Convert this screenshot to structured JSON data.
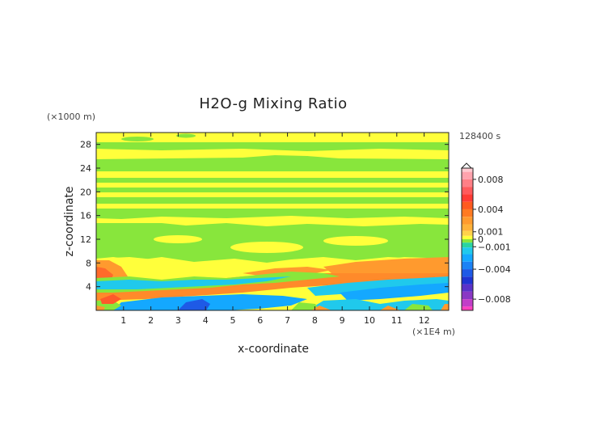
{
  "chart_data": {
    "type": "heatmap",
    "title": "H2O-g Mixing Ratio",
    "xlabel": "x-coordinate",
    "ylabel": "z-coordinate",
    "x_unit": "(×1E4 m)",
    "y_unit": "(×1000 m)",
    "time_label": "128400 s",
    "xlim": [
      0,
      12.9
    ],
    "ylim": [
      0,
      30
    ],
    "x_ticks": [
      "1",
      "2",
      "3",
      "4",
      "5",
      "6",
      "7",
      "8",
      "9",
      "10",
      "11",
      "12"
    ],
    "y_ticks": [
      "4",
      "8",
      "12",
      "16",
      "20",
      "24",
      "28"
    ],
    "colorbar": {
      "range": [
        -0.0095,
        0.0095
      ],
      "labels": [
        "0.008",
        "0.004",
        "0.001",
        "0",
        "−0.001",
        "−0.004",
        "−0.008"
      ],
      "label_values": [
        0.008,
        0.004,
        0.001,
        0,
        -0.001,
        -0.004,
        -0.008
      ],
      "levels": [
        {
          "v": 0.0095,
          "color": "#ffc9d0"
        },
        {
          "v": 0.0085,
          "color": "#ffa3ad"
        },
        {
          "v": 0.0075,
          "color": "#ff7f86"
        },
        {
          "v": 0.0065,
          "color": "#ff5a5c"
        },
        {
          "v": 0.0055,
          "color": "#ff3b34"
        },
        {
          "v": 0.0045,
          "color": "#ff5a1f"
        },
        {
          "v": 0.0035,
          "color": "#ff7a22"
        },
        {
          "v": 0.0025,
          "color": "#ff9a2e"
        },
        {
          "v": 0.0015,
          "color": "#ffb23a"
        },
        {
          "v": 0.0007,
          "color": "#ffd24a"
        },
        {
          "v": 0.0002,
          "color": "#ffff3b"
        },
        {
          "v": -0.0002,
          "color": "#88e63c"
        },
        {
          "v": -0.0007,
          "color": "#2ad4a0"
        },
        {
          "v": -0.0015,
          "color": "#20c9ec"
        },
        {
          "v": -0.0025,
          "color": "#14a8ff"
        },
        {
          "v": -0.0035,
          "color": "#1c82f5"
        },
        {
          "v": -0.0045,
          "color": "#1e5ae6"
        },
        {
          "v": -0.0055,
          "color": "#1f34d2"
        },
        {
          "v": -0.0065,
          "color": "#5a32c8"
        },
        {
          "v": -0.0075,
          "color": "#8a38c4"
        },
        {
          "v": -0.0085,
          "color": "#c23ec8"
        },
        {
          "v": -0.0095,
          "color": "#ff3fbe"
        }
      ]
    },
    "fields": {
      "background": "#ffff3b",
      "green": "#88e63c",
      "orange": "#ff9a2e",
      "red": "#ff4a2a",
      "cyan": "#20c9ec",
      "blue": "#14a8ff",
      "deep_blue": "#1e5ae6"
    }
  }
}
